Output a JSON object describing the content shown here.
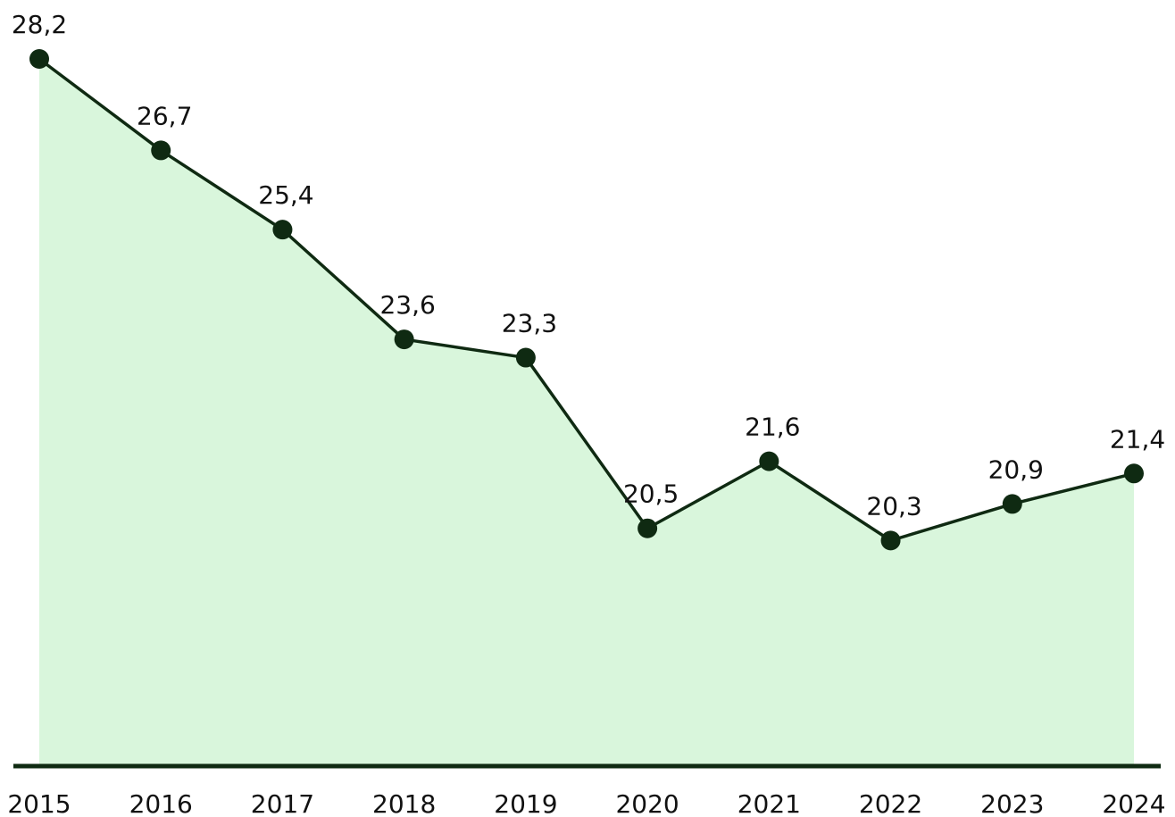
{
  "chart_data": {
    "type": "area",
    "categories": [
      "2015",
      "2016",
      "2017",
      "2018",
      "2019",
      "2020",
      "2021",
      "2022",
      "2023",
      "2024"
    ],
    "values": [
      28.2,
      26.7,
      25.4,
      23.6,
      23.3,
      20.5,
      21.6,
      20.3,
      20.9,
      21.4
    ],
    "value_labels": [
      "28,2",
      "26,7",
      "25,4",
      "23,6",
      "23,3",
      "20,5",
      "21,6",
      "20,3",
      "20,9",
      "21,4"
    ],
    "ylim": [
      16.6,
      28.2
    ],
    "color": "#0f2a12",
    "fill_color": "#d9f6dc"
  }
}
